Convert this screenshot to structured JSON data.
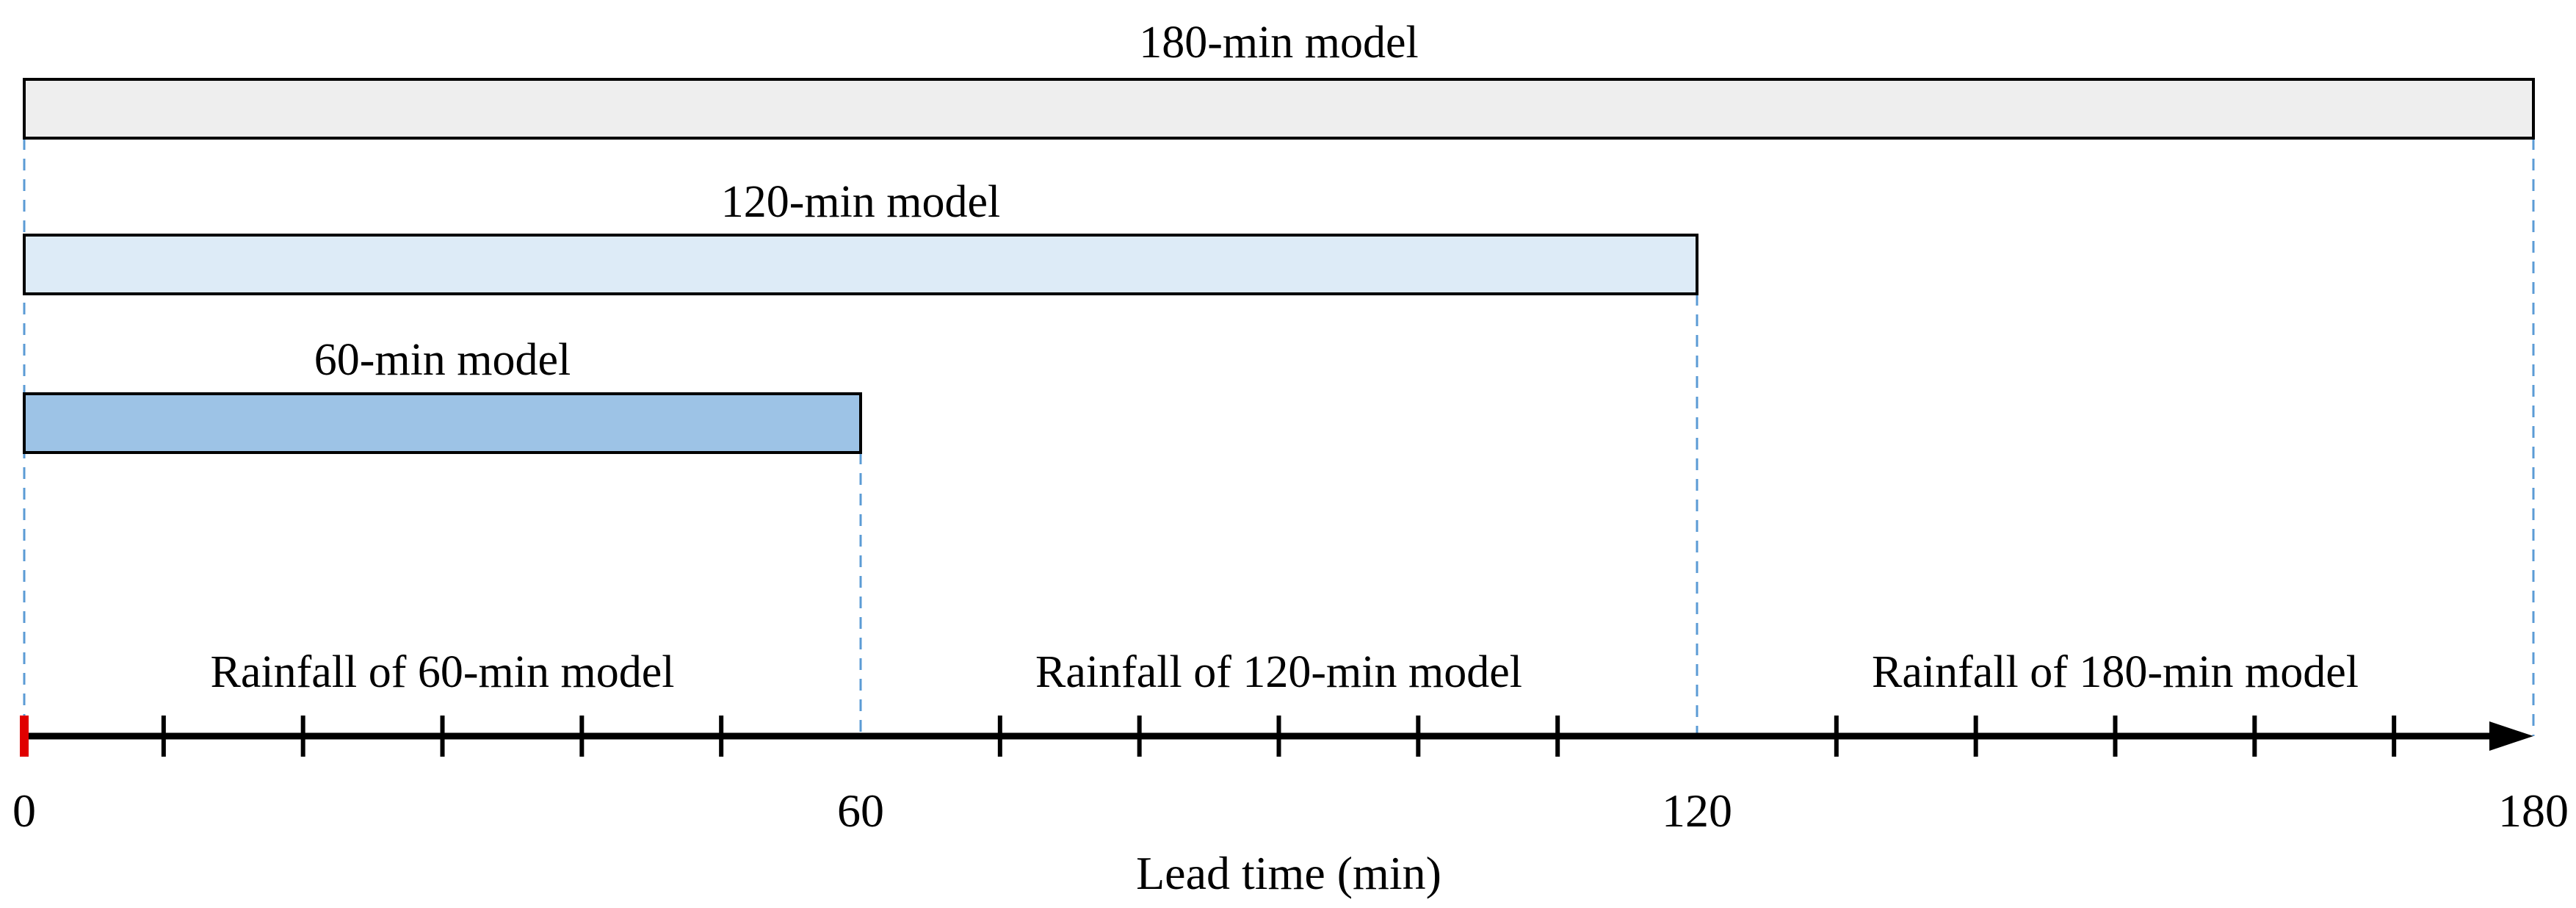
{
  "axis": {
    "title": "Lead time (min)",
    "range": [
      0,
      180
    ],
    "major_ticks": [
      0,
      60,
      120,
      180
    ],
    "major_tick_labels": [
      "0",
      "60",
      "120",
      "180"
    ],
    "minor_ticks": [
      10,
      20,
      30,
      40,
      50,
      70,
      80,
      90,
      100,
      110,
      130,
      140,
      150,
      160,
      170
    ]
  },
  "models": [
    {
      "label": "180-min model",
      "start": 0,
      "end": 180,
      "fill": "#EEEEEE"
    },
    {
      "label": "120-min model",
      "start": 0,
      "end": 120,
      "fill": "#DDEBF7"
    },
    {
      "label": "60-min model",
      "start": 0,
      "end": 60,
      "fill": "#9DC3E6"
    }
  ],
  "segments": [
    {
      "label": "Rainfall of 60-min model",
      "start": 0,
      "end": 60
    },
    {
      "label": "Rainfall of 120-min model",
      "start": 60,
      "end": 120
    },
    {
      "label": "Rainfall of 180-min model",
      "start": 120,
      "end": 180
    }
  ],
  "colors": {
    "guide_line": "#5B9BD5",
    "origin_marker": "#E00000",
    "axis": "#000000",
    "bar_stroke": "#000000"
  }
}
